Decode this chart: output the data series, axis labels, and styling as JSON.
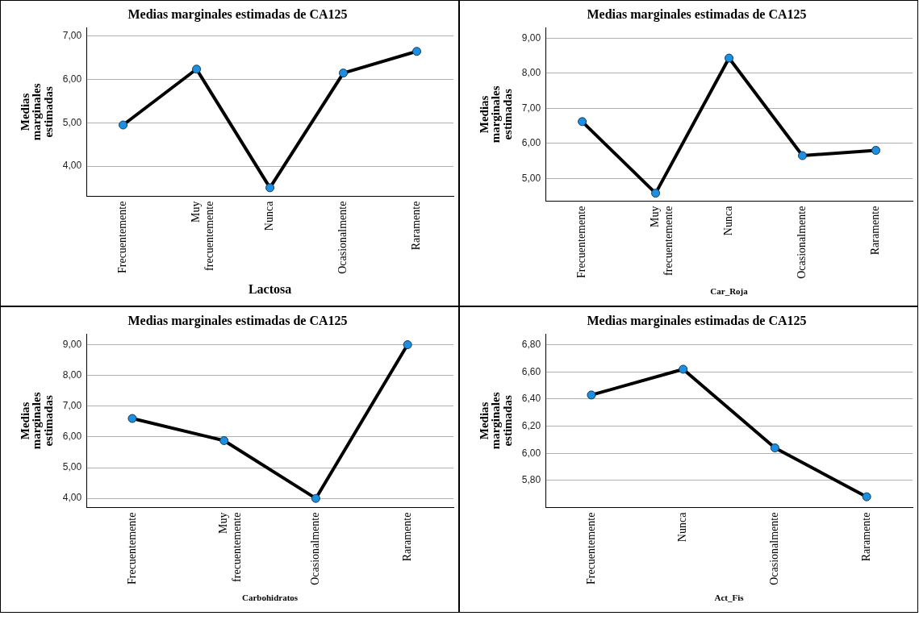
{
  "chart_data": [
    {
      "type": "line",
      "title": "Medias marginales estimadas de CA125",
      "xlabel": "Lactosa",
      "ylabel": "Medias marginales estimadas",
      "categories": [
        "Frecuentemente",
        "Muy frecuentemente",
        "Nunca",
        "Ocasionalmente",
        "Raramente"
      ],
      "series": [
        {
          "color": "#000000",
          "values": [
            4.95,
            6.24,
            3.5,
            6.15,
            6.65
          ]
        }
      ],
      "ylim": [
        3.3,
        7.2
      ],
      "yticks": [
        {
          "value": 4,
          "label": "4,00"
        },
        {
          "value": 5,
          "label": "5,00"
        },
        {
          "value": 6,
          "label": "6,00"
        },
        {
          "value": 7,
          "label": "7,00"
        }
      ],
      "grid": "y",
      "marker": "circle",
      "legend": false
    },
    {
      "type": "line",
      "title": "Medias marginales estimadas de CA125",
      "xlabel": "Car_Roja",
      "ylabel": "Medias marginales estimadas",
      "categories": [
        "Frecuentemente",
        "Muy frecuentemente",
        "Nunca",
        "Ocasionalmente",
        "Raramente"
      ],
      "series": [
        {
          "color": "#000000",
          "values": [
            6.62,
            4.58,
            8.43,
            5.65,
            5.8
          ]
        }
      ],
      "ylim": [
        4.35,
        9.3
      ],
      "yticks": [
        {
          "value": 5,
          "label": "5,00"
        },
        {
          "value": 6,
          "label": "6,00"
        },
        {
          "value": 7,
          "label": "7,00"
        },
        {
          "value": 8,
          "label": "8,00"
        },
        {
          "value": 9,
          "label": "9,00"
        }
      ],
      "grid": "y",
      "marker": "circle",
      "legend": false
    },
    {
      "type": "line",
      "title": "Medias marginales estimadas de CA125",
      "xlabel": "Carbohidratos",
      "ylabel": "Medias marginales estimadas",
      "categories": [
        "Frecuentemente",
        "Muy frecuentemente",
        "Ocasionalmente",
        "Raramente"
      ],
      "series": [
        {
          "color": "#000000",
          "values": [
            6.6,
            5.88,
            4.0,
            9.0
          ]
        }
      ],
      "ylim": [
        3.7,
        9.35
      ],
      "yticks": [
        {
          "value": 4,
          "label": "4,00"
        },
        {
          "value": 5,
          "label": "5,00"
        },
        {
          "value": 6,
          "label": "6,00"
        },
        {
          "value": 7,
          "label": "7,00"
        },
        {
          "value": 8,
          "label": "8,00"
        },
        {
          "value": 9,
          "label": "9,00"
        }
      ],
      "grid": "y",
      "marker": "circle",
      "legend": false
    },
    {
      "type": "line",
      "title": "Medias marginales estimadas de CA125",
      "xlabel": "Act_Fis",
      "ylabel": "Medias marginales estimadas",
      "categories": [
        "Frecuentemente",
        "Nunca",
        "Ocasionalmente",
        "Raramente"
      ],
      "series": [
        {
          "color": "#000000",
          "values": [
            6.43,
            6.62,
            6.04,
            5.68
          ]
        }
      ],
      "ylim": [
        5.6,
        6.88
      ],
      "yticks": [
        {
          "value": 5.8,
          "label": "5,80"
        },
        {
          "value": 6.0,
          "label": "6,00"
        },
        {
          "value": 6.2,
          "label": "6,20"
        },
        {
          "value": 6.4,
          "label": "6,40"
        },
        {
          "value": 6.6,
          "label": "6,60"
        },
        {
          "value": 6.8,
          "label": "6,80"
        }
      ],
      "grid": "y",
      "marker": "circle",
      "legend": false
    }
  ]
}
